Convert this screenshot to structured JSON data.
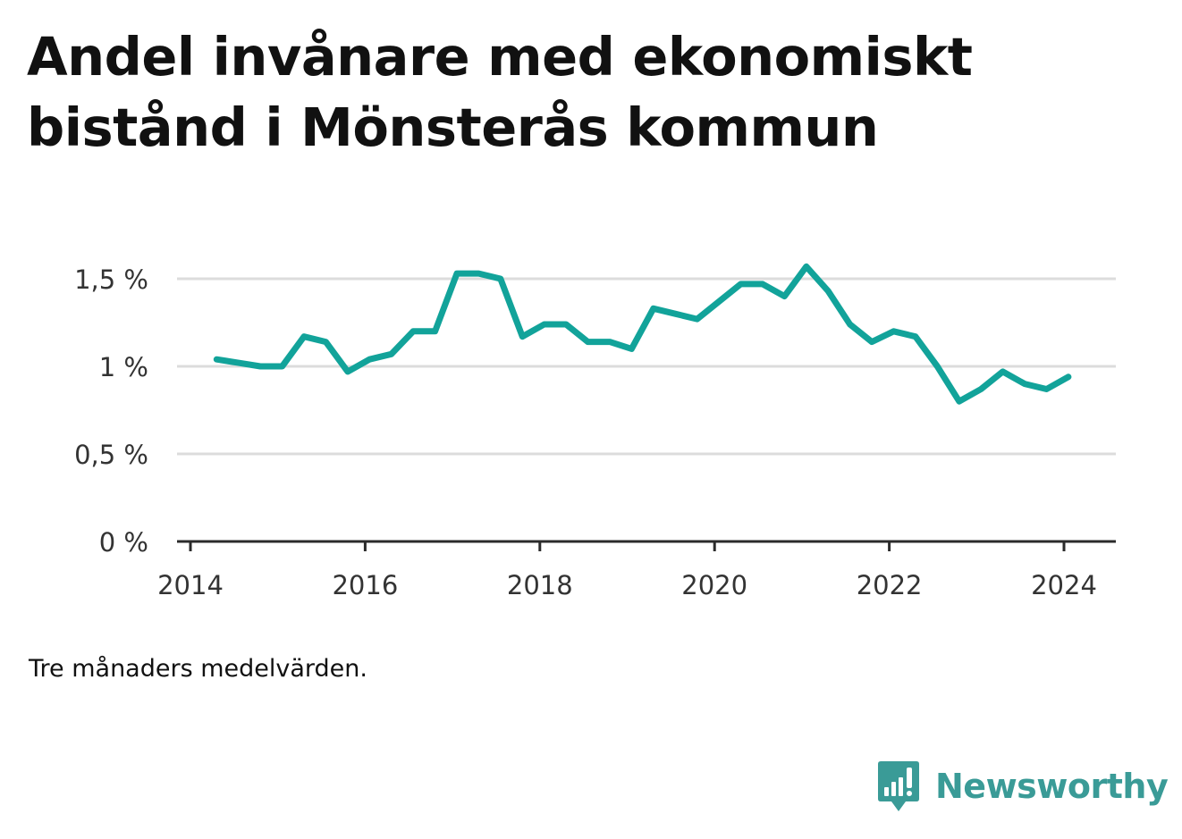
{
  "title": {
    "line1": "Andel invånare med ekonomiskt",
    "line2": "bistånd i Mönsterås kommun"
  },
  "note": "Tre månaders medelvärden.",
  "brand": {
    "name": "Newsworthy",
    "icon": "newsworthy-logo-icon",
    "color": "#3a9b97"
  },
  "colors": {
    "line": "#12a39a",
    "grid": "#dcdcdc",
    "axis": "#2b2b2b",
    "text": "#333333"
  },
  "chart_data": {
    "type": "line",
    "title": "Andel invånare med ekonomiskt bistånd i Mönsterås kommun",
    "xlabel": "",
    "ylabel": "",
    "xlim": [
      2014,
      2024.6
    ],
    "ylim": [
      0,
      1.5
    ],
    "grid": true,
    "x_ticks": [
      2014,
      2016,
      2018,
      2020,
      2022,
      2024
    ],
    "x_tick_labels": [
      "2014",
      "2016",
      "2018",
      "2020",
      "2022",
      "2024"
    ],
    "y_ticks": [
      0,
      0.5,
      1,
      1.5
    ],
    "y_tick_labels": [
      "0 %",
      "0,5 %",
      "1 %",
      "1,5 %"
    ],
    "series": [
      {
        "x": [
          2014.3,
          2014.55,
          2014.8,
          2015.05,
          2015.3,
          2015.55,
          2015.8,
          2016.05,
          2016.3,
          2016.55,
          2016.8,
          2017.05,
          2017.3,
          2017.55,
          2017.8,
          2018.05,
          2018.3,
          2018.55,
          2018.8,
          2019.05,
          2019.3,
          2019.55,
          2019.8,
          2020.05,
          2020.3,
          2020.55,
          2020.8,
          2021.05,
          2021.3,
          2021.55,
          2021.8,
          2022.05,
          2022.3,
          2022.55,
          2022.8,
          2023.05,
          2023.3,
          2023.55,
          2023.8,
          2024.05
        ],
        "values": [
          1.04,
          1.02,
          1.0,
          1.0,
          1.17,
          1.14,
          0.97,
          1.04,
          1.07,
          1.2,
          1.2,
          1.53,
          1.53,
          1.5,
          1.17,
          1.24,
          1.24,
          1.14,
          1.14,
          1.1,
          1.33,
          1.3,
          1.27,
          1.37,
          1.47,
          1.47,
          1.4,
          1.57,
          1.43,
          1.24,
          1.14,
          1.2,
          1.17,
          1.0,
          0.8,
          0.87,
          0.97,
          0.9,
          0.87,
          0.94
        ]
      }
    ]
  }
}
